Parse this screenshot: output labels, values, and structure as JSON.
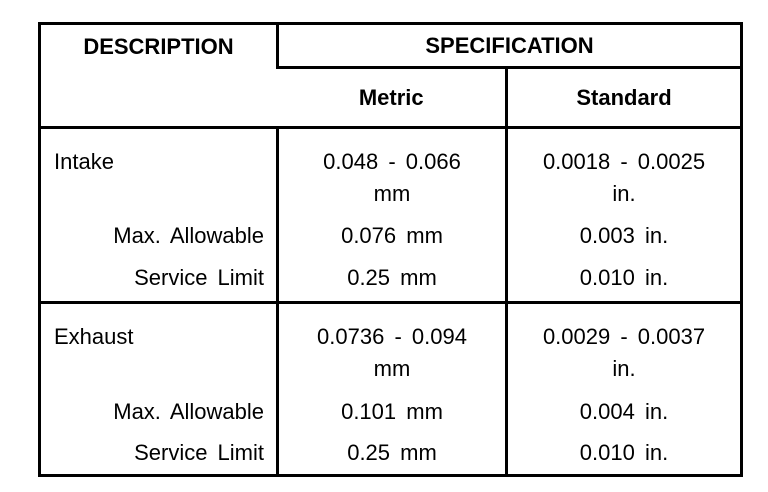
{
  "page": {
    "background_color": "#ffffff",
    "table_border_color": "#000000",
    "text_color": "#000000"
  },
  "table": {
    "header": {
      "description": "DESCRIPTION",
      "specification": "SPECIFICATION",
      "metric": "Metric",
      "standard": "Standard"
    },
    "groups": [
      {
        "name": "Intake",
        "rows": [
          {
            "description": "Intake",
            "metric": "0.048 - 0.066\nmm",
            "standard": "0.0018 - 0.0025\nin."
          },
          {
            "description": "Max. Allowable",
            "metric": "0.076 mm",
            "standard": "0.003 in."
          },
          {
            "description": "Service Limit",
            "metric": "0.25 mm",
            "standard": "0.010 in."
          }
        ]
      },
      {
        "name": "Exhaust",
        "rows": [
          {
            "description": "Exhaust",
            "metric": "0.0736 - 0.094\nmm",
            "standard": "0.0029 - 0.0037\nin."
          },
          {
            "description": "Max. Allowable",
            "metric": "0.101 mm",
            "standard": "0.004 in."
          },
          {
            "description": "Service Limit",
            "metric": "0.25 mm",
            "standard": "0.010 in."
          }
        ]
      }
    ]
  }
}
